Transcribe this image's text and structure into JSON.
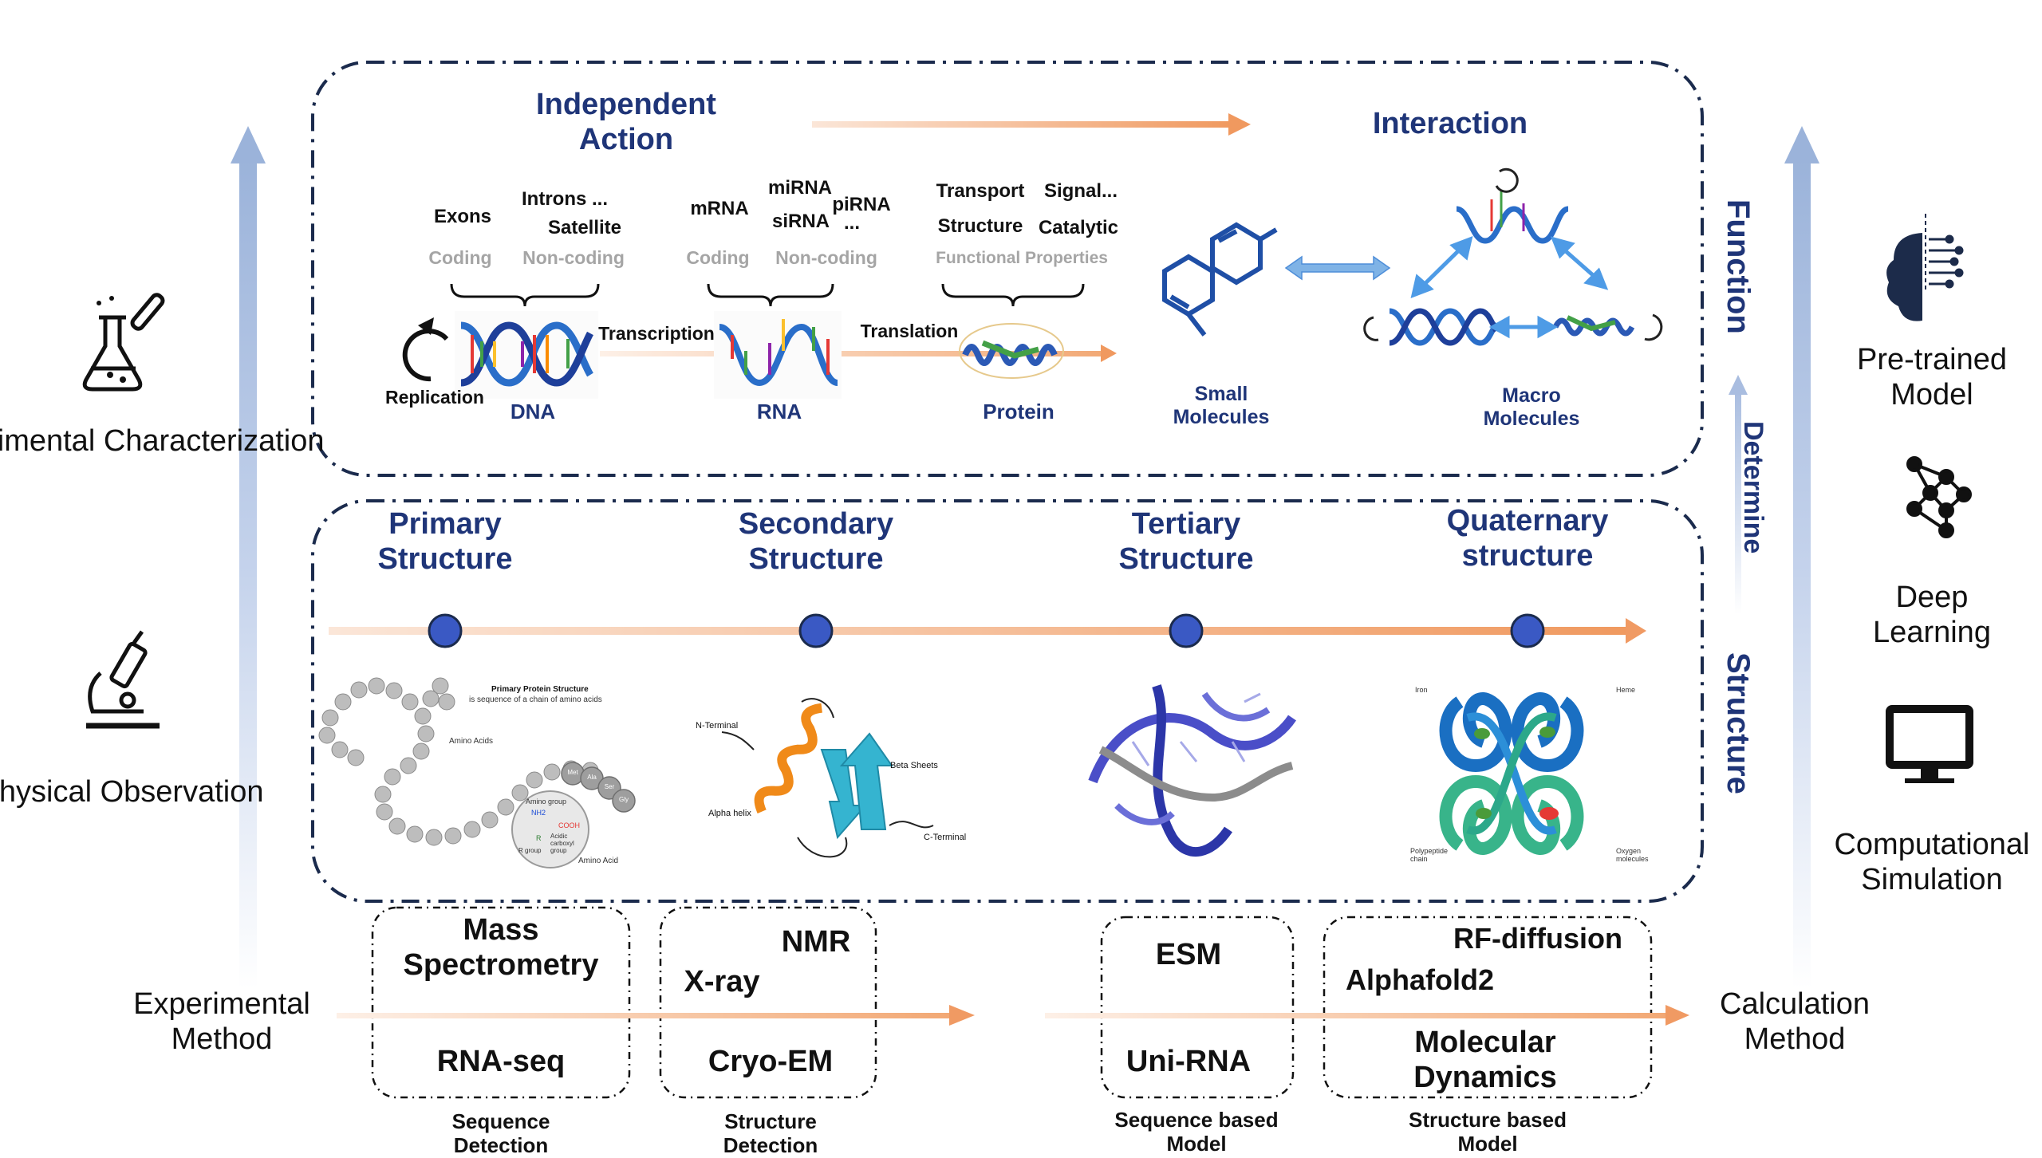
{
  "left_axis": {
    "top_label": "Experimental Characterization",
    "bottom_label": "Physical Observation",
    "icon_top": "flask-icon",
    "icon_bottom": "microscope-icon"
  },
  "right_axis": {
    "label_1": "Pre-trained Model",
    "label_2": "Deep Learning",
    "label_3": "Computational Simulation",
    "icon_1": "brain-icon",
    "icon_2": "neural-network-icon",
    "icon_3": "monitor-icon"
  },
  "vertical_labels": {
    "function": "Function",
    "determine": "Determine",
    "structure": "Structure"
  },
  "function_panel": {
    "independent_action": "Independent Action",
    "interaction": "Interaction",
    "dna": {
      "exons": "Exons",
      "introns": "Introns ...",
      "satellite": "Satellite",
      "coding": "Coding",
      "noncoding": "Non-coding",
      "replication": "Replication",
      "label": "DNA",
      "transcription": "Transcription"
    },
    "rna": {
      "mrna": "mRNA",
      "mirna": "miRNA",
      "sirna": "siRNA",
      "pirna": "piRNA",
      "ellipsis": "...",
      "coding": "Coding",
      "noncoding": "Non-coding",
      "label": "RNA",
      "translation": "Translation"
    },
    "protein": {
      "transport": "Transport",
      "signal": "Signal...",
      "structure": "Structure",
      "catalytic": "Catalytic",
      "functional": "Functional Properties",
      "label": "Protein"
    },
    "small_molecules": "Small Molecules",
    "macro_molecules": "Macro Molecules"
  },
  "structure_panel": {
    "levels": [
      {
        "title": "Primary Structure"
      },
      {
        "title": "Secondary Structure"
      },
      {
        "title": "Tertiary Structure"
      },
      {
        "title": "Quaternary structure"
      }
    ],
    "primary_img": {
      "title": "Primary Protein Structure",
      "subtitle": "is sequence of a chain of amino acids",
      "amino_acids": "Amino Acids",
      "amino_acid": "Amino Acid",
      "nh2": "NH2",
      "cooh": "COOH",
      "r": "R",
      "amino_group": "Amino group",
      "acidic": "Acidic carboxyl group",
      "r_group": "R group",
      "beads": [
        "Met",
        "Ala",
        "Ser",
        "Gly",
        "Cys"
      ]
    },
    "secondary_img": {
      "n_terminal": "N-Terminal",
      "beta": "Beta Sheets",
      "alpha": "Alpha helix",
      "c_terminal": "C-Terminal"
    },
    "quaternary_img": {
      "iron": "Iron",
      "heme": "Heme",
      "polypeptide": "Polypeptide chain",
      "oxygen": "Oxygen molecules"
    }
  },
  "methods": {
    "experimental": "Experimental Method",
    "calculation": "Calculation Method",
    "mass_spec": "Mass Spectrometry",
    "rnaseq": "RNA-seq",
    "nmr": "NMR",
    "xray": "X-ray",
    "cryoem": "Cryo-EM",
    "esm": "ESM",
    "unirna": "Uni-RNA",
    "rfdiffusion": "RF-diffusion",
    "alphafold": "Alphafold2",
    "md": "Molecular Dynamics",
    "seq_detection": "Sequence Detection",
    "struct_detection": "Structure Detection",
    "seq_model": "Sequence based Model",
    "struct_model": "Structure based Model"
  },
  "colors": {
    "navy": "#1f3578",
    "orange": "#f0a270",
    "blue_arrow": "#9bb3da",
    "node_fill": "#3a59c4",
    "dna_blue": "#2a6ec9"
  }
}
